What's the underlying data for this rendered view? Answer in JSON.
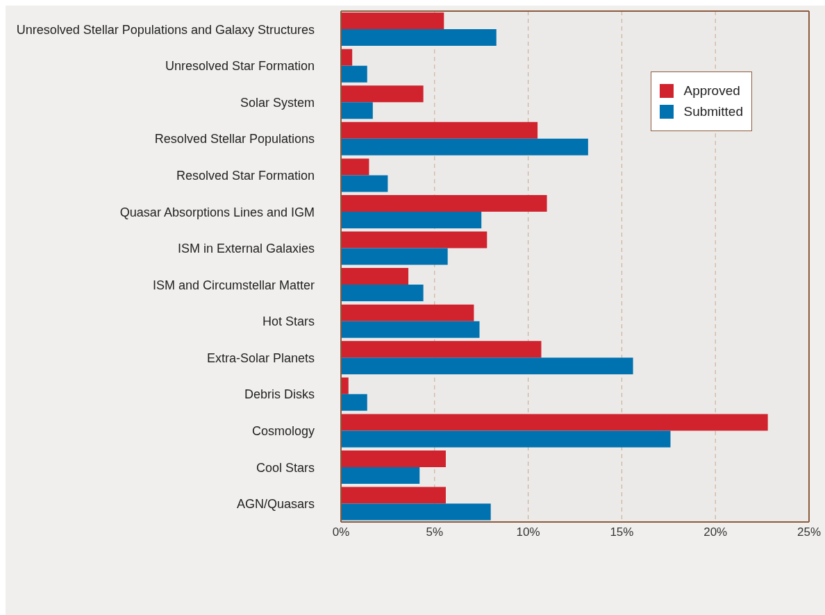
{
  "chart_data": {
    "type": "bar",
    "orientation": "horizontal",
    "categories": [
      "Unresolved Stellar Populations and Galaxy Structures",
      "Unresolved Star Formation",
      "Solar System",
      "Resolved Stellar Populations",
      "Resolved Star Formation",
      "Quasar Absorptions Lines and IGM",
      "ISM in External Galaxies",
      "ISM and Circumstellar Matter",
      "Hot Stars",
      "Extra-Solar Planets",
      "Debris Disks",
      "Cosmology",
      "Cool Stars",
      "AGN/Quasars"
    ],
    "series": [
      {
        "name": "Approved",
        "color": "#d0232e",
        "values": [
          5.5,
          0.6,
          4.4,
          10.5,
          1.5,
          11.0,
          7.8,
          3.6,
          7.1,
          10.7,
          0.4,
          22.8,
          5.6,
          5.6
        ]
      },
      {
        "name": "Submitted",
        "color": "#0072b0",
        "values": [
          8.3,
          1.4,
          1.7,
          13.2,
          2.5,
          7.5,
          5.7,
          4.4,
          7.4,
          15.6,
          1.4,
          17.6,
          4.2,
          8.0
        ]
      }
    ],
    "xlim": [
      0,
      25
    ],
    "xticks": [
      {
        "value": 0,
        "label": "0%"
      },
      {
        "value": 5,
        "label": "5%"
      },
      {
        "value": 10,
        "label": "10%"
      },
      {
        "value": 15,
        "label": "15%"
      },
      {
        "value": 20,
        "label": "20%"
      },
      {
        "value": 25,
        "label": "25%"
      }
    ],
    "grid": "x",
    "legend": "top right"
  }
}
